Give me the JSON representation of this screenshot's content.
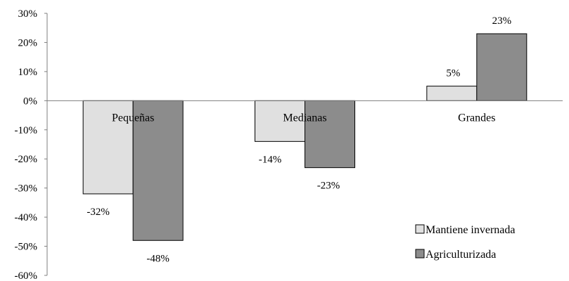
{
  "chart_data": {
    "type": "bar",
    "categories": [
      "Pequeñas",
      "Medianas",
      "Grandes"
    ],
    "series": [
      {
        "name": "Mantiene invernada",
        "values": [
          -32,
          -14,
          5
        ],
        "labels": [
          "-32%",
          "-14%",
          "5%"
        ],
        "color": "#e0e0e0"
      },
      {
        "name": "Agriculturizada",
        "values": [
          -48,
          -23,
          23
        ],
        "labels": [
          "-48%",
          "-23%",
          "23%"
        ],
        "color": "#8c8c8c"
      }
    ],
    "yticks": [
      30,
      20,
      10,
      0,
      -10,
      -20,
      -30,
      -40,
      -50,
      -60
    ],
    "ytick_labels": [
      "30%",
      "20%",
      "10%",
      "0%",
      "-10%",
      "-20%",
      "-30%",
      "-40%",
      "-50%",
      "-60%"
    ],
    "ylim": [
      -60,
      30
    ],
    "title": "",
    "xlabel": "",
    "ylabel": "",
    "grid": false,
    "legend_position": "bottom-right"
  }
}
